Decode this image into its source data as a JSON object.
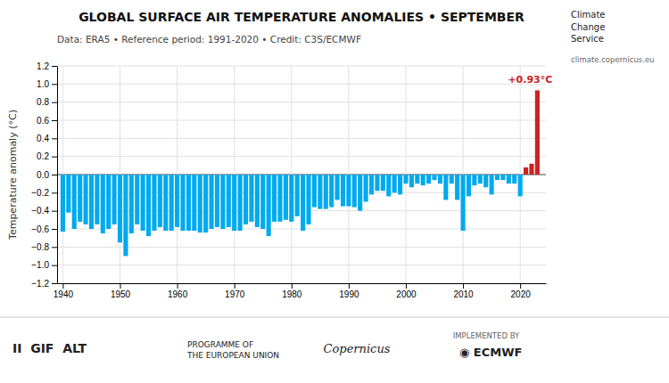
{
  "chart_data": {
    "type": "bar",
    "title": "GLOBAL SURFACE AIR TEMPERATURE ANOMALIES • SEPTEMBER",
    "subtitle": "Data: ERA5 • Reference period: 1991-2020 • Credit: C3S/ECMWF",
    "ylabel": "Temperature anomaly (°C)",
    "x": [
      1940,
      1941,
      1942,
      1943,
      1944,
      1945,
      1946,
      1947,
      1948,
      1949,
      1950,
      1951,
      1952,
      1953,
      1954,
      1955,
      1956,
      1957,
      1958,
      1959,
      1960,
      1961,
      1962,
      1963,
      1964,
      1965,
      1966,
      1967,
      1968,
      1969,
      1970,
      1971,
      1972,
      1973,
      1974,
      1975,
      1976,
      1977,
      1978,
      1979,
      1980,
      1981,
      1982,
      1983,
      1984,
      1985,
      1986,
      1987,
      1988,
      1989,
      1990,
      1991,
      1992,
      1993,
      1994,
      1995,
      1996,
      1997,
      1998,
      1999,
      2000,
      2001,
      2002,
      2003,
      2004,
      2005,
      2006,
      2007,
      2008,
      2009,
      2010,
      2011,
      2012,
      2013,
      2014,
      2015,
      2016,
      2017,
      2018,
      2019,
      2020,
      2021,
      2022,
      2023
    ],
    "values": [
      -0.63,
      -0.42,
      -0.6,
      -0.52,
      -0.55,
      -0.6,
      -0.55,
      -0.65,
      -0.6,
      -0.55,
      -0.75,
      -0.9,
      -0.65,
      -0.55,
      -0.62,
      -0.68,
      -0.62,
      -0.58,
      -0.62,
      -0.62,
      -0.58,
      -0.62,
      -0.62,
      -0.62,
      -0.64,
      -0.64,
      -0.6,
      -0.58,
      -0.6,
      -0.58,
      -0.62,
      -0.62,
      -0.55,
      -0.52,
      -0.58,
      -0.6,
      -0.68,
      -0.52,
      -0.52,
      -0.5,
      -0.52,
      -0.46,
      -0.62,
      -0.55,
      -0.36,
      -0.38,
      -0.38,
      -0.36,
      -0.28,
      -0.35,
      -0.35,
      -0.36,
      -0.4,
      -0.3,
      -0.22,
      -0.18,
      -0.18,
      -0.24,
      -0.2,
      -0.22,
      -0.1,
      -0.14,
      -0.1,
      -0.12,
      -0.1,
      -0.06,
      -0.1,
      -0.28,
      -0.1,
      -0.28,
      -0.62,
      -0.24,
      -0.12,
      -0.1,
      -0.14,
      -0.22,
      -0.06,
      -0.06,
      -0.1,
      -0.1,
      -0.24,
      0.08,
      0.12,
      0.93
    ],
    "colors": [
      "#00aaee",
      "#00aaee",
      "#00aaee",
      "#00aaee",
      "#00aaee",
      "#00aaee",
      "#00aaee",
      "#00aaee",
      "#00aaee",
      "#00aaee",
      "#00aaee",
      "#00aaee",
      "#00aaee",
      "#00aaee",
      "#00aaee",
      "#00aaee",
      "#00aaee",
      "#00aaee",
      "#00aaee",
      "#00aaee",
      "#00aaee",
      "#00aaee",
      "#00aaee",
      "#00aaee",
      "#00aaee",
      "#00aaee",
      "#00aaee",
      "#00aaee",
      "#00aaee",
      "#00aaee",
      "#00aaee",
      "#00aaee",
      "#00aaee",
      "#00aaee",
      "#00aaee",
      "#00aaee",
      "#00aaee",
      "#00aaee",
      "#00aaee",
      "#00aaee",
      "#00aaee",
      "#00aaee",
      "#00aaee",
      "#00aaee",
      "#00aaee",
      "#00aaee",
      "#00aaee",
      "#00aaee",
      "#00aaee",
      "#00aaee",
      "#00aaee",
      "#00aaee",
      "#00aaee",
      "#00aaee",
      "#00aaee",
      "#00aaee",
      "#00aaee",
      "#00aaee",
      "#00aaee",
      "#00aaee",
      "#00aaee",
      "#00aaee",
      "#00aaee",
      "#00aaee",
      "#00aaee",
      "#00aaee",
      "#00aaee",
      "#00aaee",
      "#00aaee",
      "#00aaee",
      "#00aaee",
      "#00aaee",
      "#00aaee",
      "#00aaee",
      "#00aaee",
      "#00aaee",
      "#00aaee",
      "#00aaee",
      "#00aaee",
      "#00aaee",
      "#00aaee",
      "#cc2222",
      "#cc2222",
      "#cc2222"
    ],
    "xlim": [
      1939.0,
      2024.5
    ],
    "ylim": [
      -1.2,
      1.2
    ],
    "xticks": [
      1940,
      1950,
      1960,
      1970,
      1980,
      1990,
      2000,
      2010,
      2020
    ],
    "yticks": [
      {
        "value": -1.2,
        "label": "−1.2"
      },
      {
        "value": -1.0,
        "label": "−1.0"
      },
      {
        "value": -0.8,
        "label": "−0.8"
      },
      {
        "value": -0.6,
        "label": "−0.6"
      },
      {
        "value": -0.4,
        "label": "−0.4"
      },
      {
        "value": -0.2,
        "label": "−0.2"
      },
      {
        "value": 0.0,
        "label": "0.0"
      },
      0.2,
      0.4,
      0.6,
      0.8,
      {
        "value": 1.0,
        "label": "1.0"
      },
      1.2
    ],
    "grid": true,
    "annotations": [
      {
        "text": "+0.93°C",
        "x": 2023,
        "y": 0.93
      },
      {
        "text": "Climate\nChange\nService"
      },
      {
        "text": "climate.copernicus.eu"
      },
      {
        "text": "II  GIF  ALT"
      },
      {
        "text": "PROGRAMME OF\nTHE EUROPEAN UNION"
      },
      {
        "text": "Copernicus"
      },
      {
        "text": "IMPLEMENTED BY"
      },
      {
        "text": "◉ ECMWF"
      }
    ]
  }
}
